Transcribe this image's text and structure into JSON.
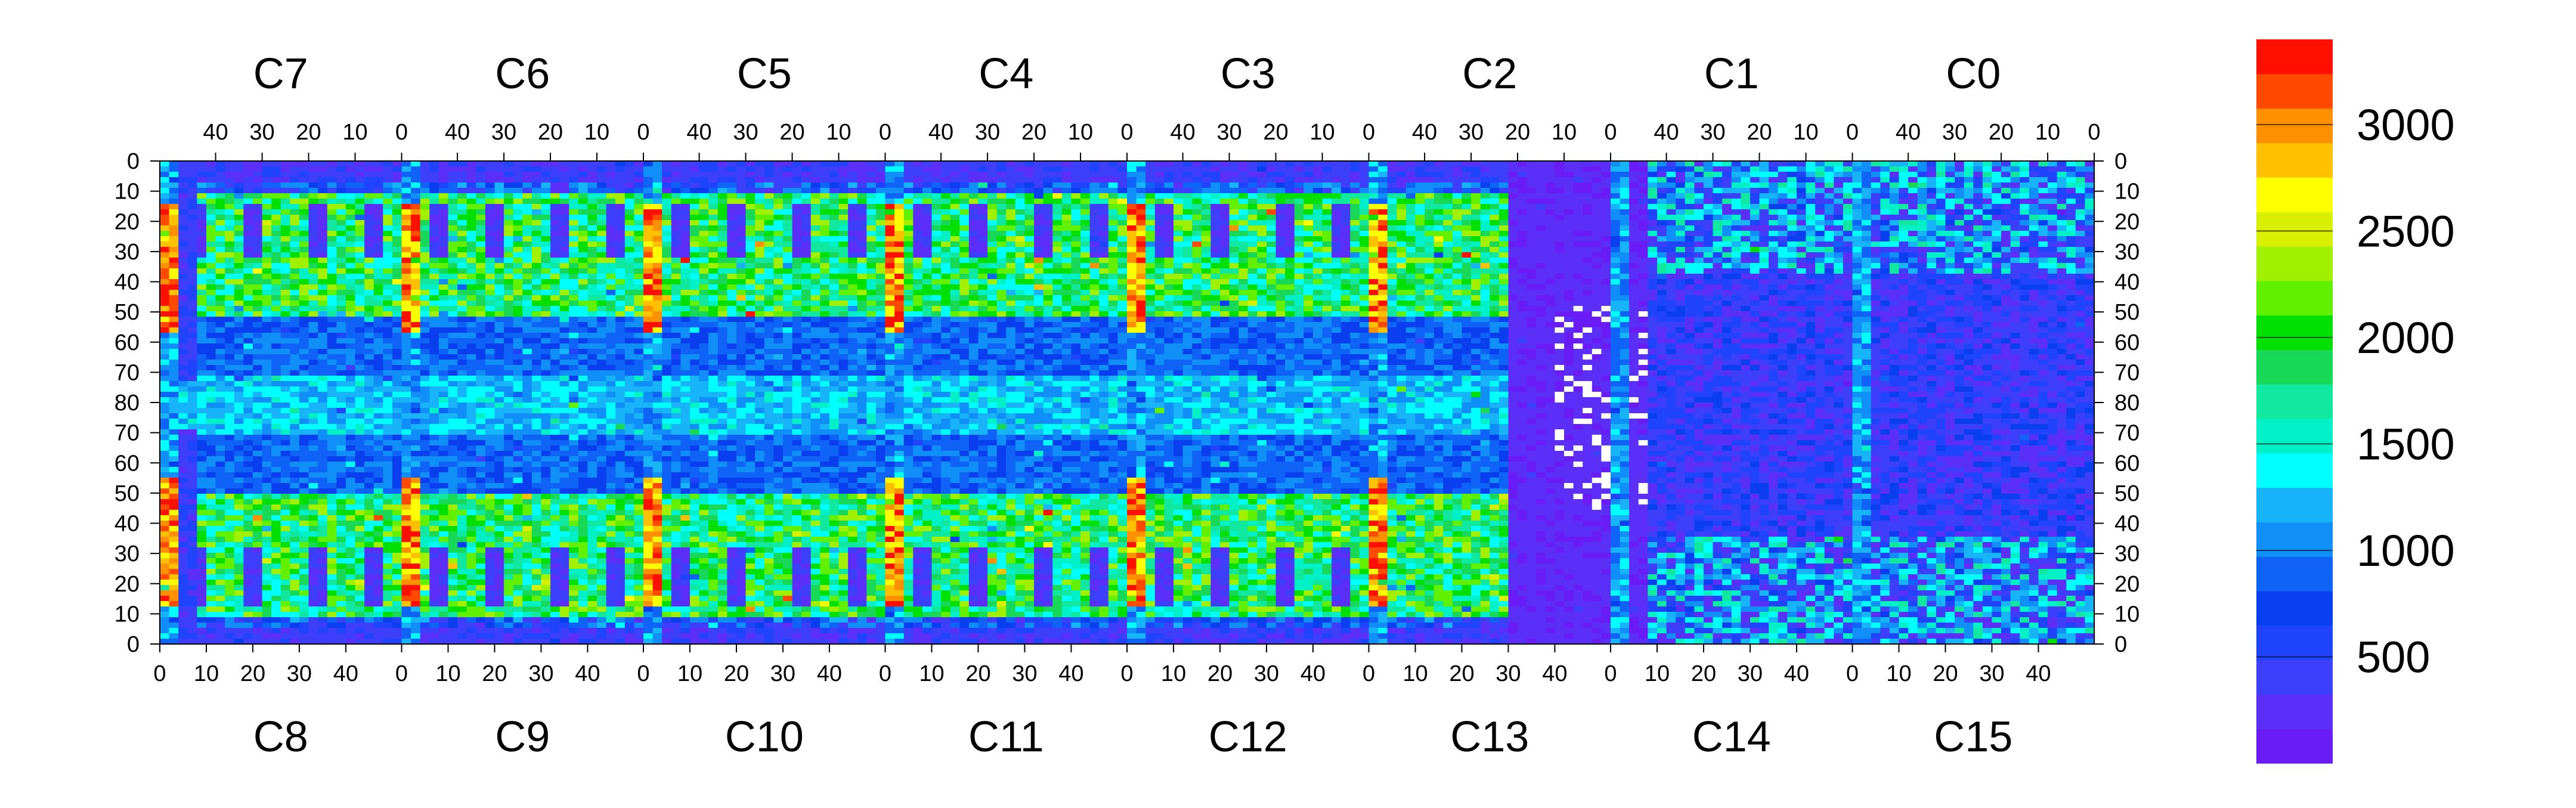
{
  "chart_data": {
    "type": "heatmap",
    "top_chip_labels": [
      "C7",
      "C6",
      "C5",
      "C4",
      "C3",
      "C2",
      "C1",
      "C0"
    ],
    "bottom_chip_labels": [
      "C8",
      "C9",
      "C10",
      "C11",
      "C12",
      "C13",
      "C14",
      "C15"
    ],
    "top_axis_ticks": [
      "40",
      "30",
      "20",
      "10",
      "0"
    ],
    "bottom_axis_ticks": [
      "0",
      "10",
      "20",
      "30",
      "40"
    ],
    "row_ticks_upper": [
      "0",
      "10",
      "20",
      "30",
      "40",
      "50",
      "60",
      "70",
      "80"
    ],
    "row_ticks_lower": [
      "70",
      "60",
      "50",
      "40",
      "30",
      "20",
      "10",
      "0"
    ],
    "columns_per_chip": 52,
    "rows_per_half": 80,
    "colorbar": {
      "ticks": [
        500,
        1000,
        1500,
        2000,
        2500,
        3000
      ],
      "range": [
        0,
        3400
      ],
      "levels": 20,
      "colors": [
        "#6a1cf6",
        "#5b2ff8",
        "#3d3ffa",
        "#1f44fb",
        "#0a3ff0",
        "#0f63f7",
        "#0f8ff7",
        "#18b4f9",
        "#00ffff",
        "#00f0c8",
        "#10e8a0",
        "#18d858",
        "#00e000",
        "#60f000",
        "#a0f000",
        "#d8f000",
        "#ffff00",
        "#ffc000",
        "#ff9000",
        "#ff4a00",
        "#ff1000"
      ]
    },
    "grid": false
  }
}
